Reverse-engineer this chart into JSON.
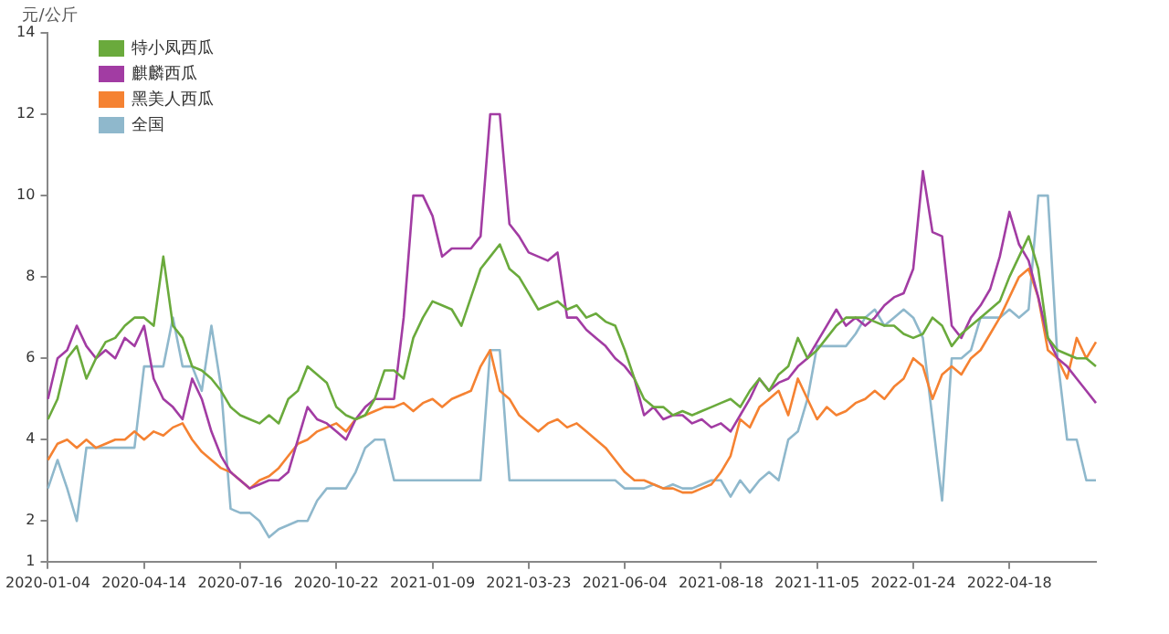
{
  "chart_data": {
    "type": "line",
    "ylabel": "元/公斤",
    "categories": [
      "2020-01-04",
      null,
      null,
      null,
      null,
      null,
      null,
      null,
      null,
      null,
      "2020-04-14",
      null,
      null,
      null,
      null,
      null,
      null,
      null,
      null,
      null,
      "2020-07-16",
      null,
      null,
      null,
      null,
      null,
      null,
      null,
      null,
      null,
      "2020-10-22",
      null,
      null,
      null,
      null,
      null,
      null,
      null,
      null,
      null,
      "2021-01-09",
      null,
      null,
      null,
      null,
      null,
      null,
      null,
      null,
      null,
      "2021-03-23",
      null,
      null,
      null,
      null,
      null,
      null,
      null,
      null,
      null,
      "2021-06-04",
      null,
      null,
      null,
      null,
      null,
      null,
      null,
      null,
      null,
      "2021-08-18",
      null,
      null,
      null,
      null,
      null,
      null,
      null,
      null,
      null,
      "2021-11-05",
      null,
      null,
      null,
      null,
      null,
      null,
      null,
      null,
      null,
      "2022-01-24",
      null,
      null,
      null,
      null,
      null,
      null,
      null,
      null,
      null,
      "2022-04-18",
      null,
      null,
      null,
      null,
      null,
      null,
      null,
      null,
      null
    ],
    "series": [
      {
        "name": "特小凤西瓜",
        "color": "#6aaa3c",
        "values": [
          4.5,
          5.0,
          6.0,
          6.3,
          5.5,
          6.0,
          6.4,
          6.5,
          6.8,
          7.0,
          7.0,
          6.8,
          8.5,
          6.8,
          6.5,
          5.8,
          5.7,
          5.5,
          5.2,
          4.8,
          4.6,
          4.5,
          4.4,
          4.6,
          4.4,
          5.0,
          5.2,
          5.8,
          5.6,
          5.4,
          4.8,
          4.6,
          4.5,
          4.6,
          5.0,
          5.7,
          5.7,
          5.5,
          6.5,
          7.0,
          7.4,
          7.3,
          7.2,
          6.8,
          7.5,
          8.2,
          8.5,
          8.8,
          8.2,
          8.0,
          7.6,
          7.2,
          7.3,
          7.4,
          7.2,
          7.3,
          7.0,
          7.1,
          6.9,
          6.8,
          6.2,
          5.5,
          5.0,
          4.8,
          4.8,
          4.6,
          4.7,
          4.6,
          4.7,
          4.8,
          4.9,
          5.0,
          4.8,
          5.2,
          5.5,
          5.2,
          5.6,
          5.8,
          6.5,
          6.0,
          6.2,
          6.5,
          6.8,
          7.0,
          7.0,
          7.0,
          6.9,
          6.8,
          6.8,
          6.6,
          6.5,
          6.6,
          7.0,
          6.8,
          6.3,
          6.6,
          6.8,
          7.0,
          7.2,
          7.4,
          8.0,
          8.5,
          9.0,
          8.2,
          6.5,
          6.2,
          6.1,
          6.0,
          6.0,
          5.8
        ]
      },
      {
        "name": "麒麟西瓜",
        "color": "#a23ca3",
        "values": [
          5.0,
          6.0,
          6.2,
          6.8,
          6.3,
          6.0,
          6.2,
          6.0,
          6.5,
          6.3,
          6.8,
          5.5,
          5.0,
          4.8,
          4.5,
          5.5,
          5.0,
          4.2,
          3.6,
          3.2,
          3.0,
          2.8,
          2.9,
          3.0,
          3.0,
          3.2,
          4.0,
          4.8,
          4.5,
          4.4,
          4.2,
          4.0,
          4.5,
          4.8,
          5.0,
          5.0,
          5.0,
          7.0,
          10.0,
          10.0,
          9.5,
          8.5,
          8.7,
          8.7,
          8.7,
          9.0,
          12.0,
          12.0,
          9.3,
          9.0,
          8.6,
          8.5,
          8.4,
          8.6,
          7.0,
          7.0,
          6.7,
          6.5,
          6.3,
          6.0,
          5.8,
          5.5,
          4.6,
          4.8,
          4.5,
          4.6,
          4.6,
          4.4,
          4.5,
          4.3,
          4.4,
          4.2,
          4.6,
          5.0,
          5.5,
          5.2,
          5.4,
          5.5,
          5.8,
          6.0,
          6.4,
          6.8,
          7.2,
          6.8,
          7.0,
          6.8,
          7.0,
          7.3,
          7.5,
          7.6,
          8.2,
          10.6,
          9.1,
          9.0,
          6.8,
          6.5,
          7.0,
          7.3,
          7.7,
          8.5,
          9.6,
          8.8,
          8.4,
          7.5,
          6.5,
          6.0,
          5.8,
          5.5,
          5.2,
          4.9
        ]
      },
      {
        "name": "黑美人西瓜",
        "color": "#f58232",
        "values": [
          3.5,
          3.9,
          4.0,
          3.8,
          4.0,
          3.8,
          3.9,
          4.0,
          4.0,
          4.2,
          4.0,
          4.2,
          4.1,
          4.3,
          4.4,
          4.0,
          3.7,
          3.5,
          3.3,
          3.2,
          3.0,
          2.8,
          3.0,
          3.1,
          3.3,
          3.6,
          3.9,
          4.0,
          4.2,
          4.3,
          4.4,
          4.2,
          4.5,
          4.6,
          4.7,
          4.8,
          4.8,
          4.9,
          4.7,
          4.9,
          5.0,
          4.8,
          5.0,
          5.1,
          5.2,
          5.8,
          6.2,
          5.2,
          5.0,
          4.6,
          4.4,
          4.2,
          4.4,
          4.5,
          4.3,
          4.4,
          4.2,
          4.0,
          3.8,
          3.5,
          3.2,
          3.0,
          3.0,
          2.9,
          2.8,
          2.8,
          2.7,
          2.7,
          2.8,
          2.9,
          3.2,
          3.6,
          4.5,
          4.3,
          4.8,
          5.0,
          5.2,
          4.6,
          5.5,
          5.0,
          4.5,
          4.8,
          4.6,
          4.7,
          4.9,
          5.0,
          5.2,
          5.0,
          5.3,
          5.5,
          6.0,
          5.8,
          5.0,
          5.6,
          5.8,
          5.6,
          6.0,
          6.2,
          6.6,
          7.0,
          7.5,
          8.0,
          8.2,
          7.5,
          6.2,
          6.0,
          5.5,
          6.5,
          6.0,
          6.4
        ]
      },
      {
        "name": "全国",
        "color": "#8fb8cc",
        "values": [
          2.8,
          3.5,
          2.8,
          2.0,
          3.8,
          3.8,
          3.8,
          3.8,
          3.8,
          3.8,
          5.8,
          5.8,
          5.8,
          7.0,
          5.8,
          5.8,
          5.2,
          6.8,
          5.3,
          2.3,
          2.2,
          2.2,
          2.0,
          1.6,
          1.8,
          1.9,
          2.0,
          2.0,
          2.5,
          2.8,
          2.8,
          2.8,
          3.2,
          3.8,
          4.0,
          4.0,
          3.0,
          3.0,
          3.0,
          3.0,
          3.0,
          3.0,
          3.0,
          3.0,
          3.0,
          3.0,
          6.2,
          6.2,
          3.0,
          3.0,
          3.0,
          3.0,
          3.0,
          3.0,
          3.0,
          3.0,
          3.0,
          3.0,
          3.0,
          3.0,
          2.8,
          2.8,
          2.8,
          2.9,
          2.8,
          2.9,
          2.8,
          2.8,
          2.9,
          3.0,
          3.0,
          2.6,
          3.0,
          2.7,
          3.0,
          3.2,
          3.0,
          4.0,
          4.2,
          5.0,
          6.3,
          6.3,
          6.3,
          6.3,
          6.6,
          7.0,
          7.2,
          6.8,
          7.0,
          7.2,
          7.0,
          6.5,
          4.5,
          2.5,
          6.0,
          6.0,
          6.2,
          7.0,
          7.0,
          7.0,
          7.2,
          7.0,
          7.2,
          10.0,
          10.0,
          6.0,
          4.0,
          4.0,
          3.0,
          3.0
        ]
      }
    ],
    "ylim": [
      1,
      14
    ],
    "yticks": [
      1,
      2,
      4,
      6,
      8,
      10,
      12,
      14
    ],
    "grid": false,
    "legend": "top left",
    "marker": "none",
    "line_style": "solid"
  }
}
